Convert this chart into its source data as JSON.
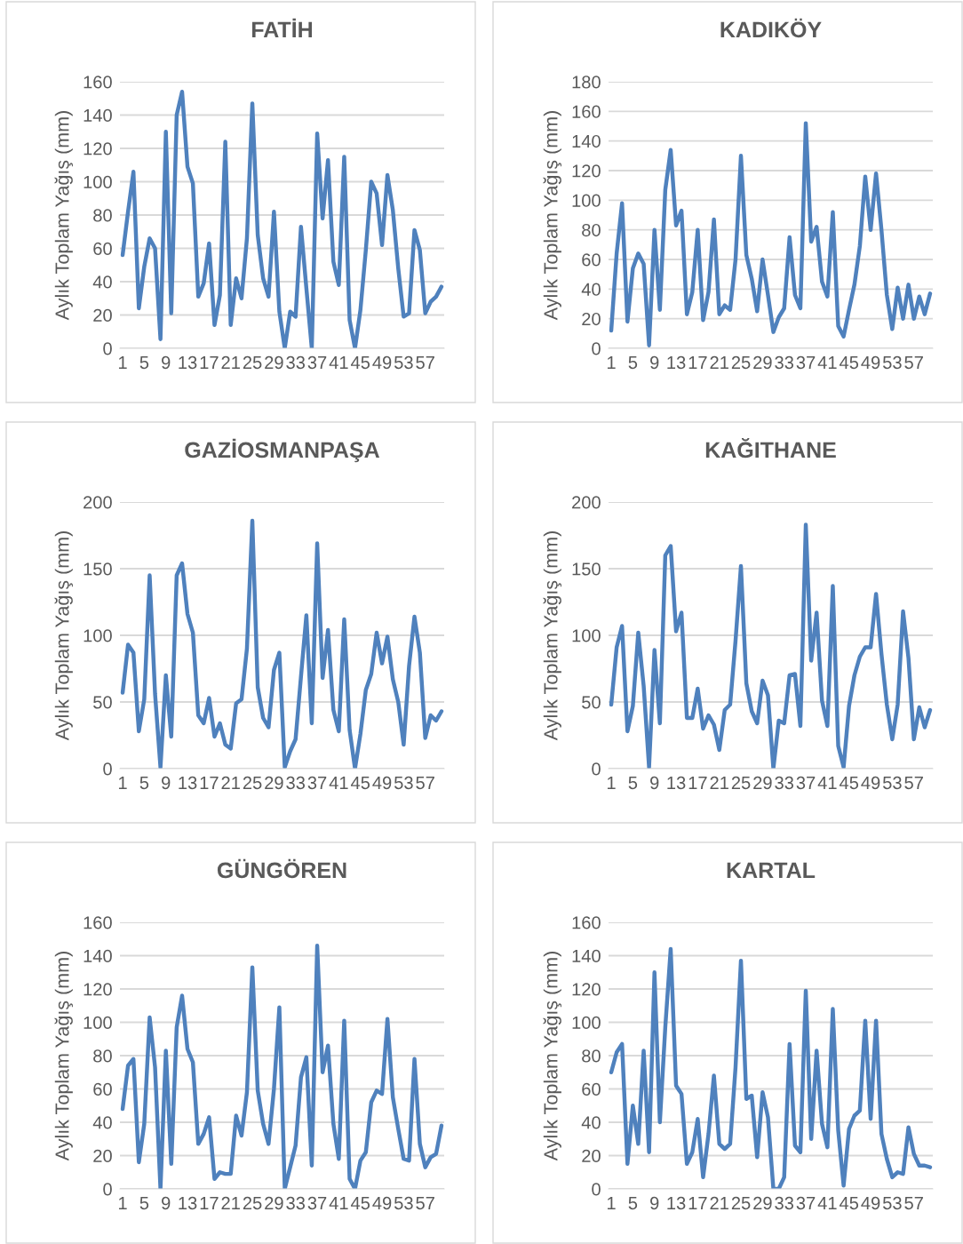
{
  "chart_data": [
    {
      "type": "line",
      "title": "FATİH",
      "ylabel": "Aylık Toplam Yağış (mm)",
      "ylim": [
        0,
        160
      ],
      "yticks": [
        0,
        20,
        40,
        60,
        80,
        100,
        120,
        140,
        160
      ],
      "grid": "y",
      "legend": false,
      "categories": [
        "1",
        null,
        null,
        null,
        "5",
        null,
        null,
        null,
        "9",
        null,
        null,
        null,
        "13",
        null,
        null,
        null,
        "17",
        null,
        null,
        null,
        "21",
        null,
        null,
        null,
        "25",
        null,
        null,
        null,
        "29",
        null,
        null,
        null,
        "33",
        null,
        null,
        null,
        "37",
        null,
        null,
        null,
        "41",
        null,
        null,
        null,
        "45",
        null,
        null,
        null,
        "49",
        null,
        null,
        null,
        "53",
        null,
        null,
        null,
        "57",
        null,
        null,
        null
      ],
      "series": [
        {
          "color": "#4f81bd",
          "values": [
            56,
            82,
            106,
            24,
            49,
            66,
            60,
            5.5,
            130,
            21,
            140,
            154,
            109,
            99,
            31,
            39,
            63,
            14,
            32,
            124,
            14,
            42,
            30,
            66,
            147,
            68,
            42,
            31,
            82,
            22,
            0,
            22,
            19,
            73,
            36,
            0,
            129,
            78,
            113,
            52,
            38,
            115,
            17,
            0,
            23,
            59,
            100,
            93,
            62,
            104,
            83,
            48,
            19,
            21,
            71,
            59,
            21,
            28,
            31,
            37
          ]
        }
      ]
    },
    {
      "type": "line",
      "title": "KADIKÖY",
      "ylabel": "Aylık Toplam Yağış (mm)",
      "ylim": [
        0,
        180
      ],
      "yticks": [
        0,
        20,
        40,
        60,
        80,
        100,
        120,
        140,
        160,
        180
      ],
      "grid": "y",
      "legend": false,
      "categories": [
        "1",
        null,
        null,
        null,
        "5",
        null,
        null,
        null,
        "9",
        null,
        null,
        null,
        "13",
        null,
        null,
        null,
        "17",
        null,
        null,
        null,
        "21",
        null,
        null,
        null,
        "25",
        null,
        null,
        null,
        "29",
        null,
        null,
        null,
        "33",
        null,
        null,
        null,
        "37",
        null,
        null,
        null,
        "41",
        null,
        null,
        null,
        "45",
        null,
        null,
        null,
        "49",
        null,
        null,
        null,
        "53",
        null,
        null,
        null,
        "57",
        null,
        null,
        null
      ],
      "series": [
        {
          "color": "#4f81bd",
          "values": [
            12,
            64,
            98,
            18,
            54,
            64,
            57,
            2,
            80,
            26,
            107,
            134,
            83,
            93,
            23,
            38,
            80,
            19,
            38,
            87,
            23,
            29,
            26,
            60,
            130,
            63,
            47,
            25,
            60,
            36,
            11,
            21,
            27,
            75,
            36,
            27,
            152,
            72,
            82,
            45,
            35,
            92,
            15,
            8,
            26,
            43,
            69,
            116,
            80,
            118,
            80,
            36,
            13,
            41,
            20,
            43,
            20,
            35,
            23,
            37
          ]
        }
      ]
    },
    {
      "type": "line",
      "title": "GAZİOSMANPAŞA",
      "ylabel": "Aylık Toplam Yağış (mm)",
      "ylim": [
        0,
        200
      ],
      "yticks": [
        0,
        50,
        100,
        150,
        200
      ],
      "grid": "y",
      "legend": false,
      "categories": [
        "1",
        null,
        null,
        null,
        "5",
        null,
        null,
        null,
        "9",
        null,
        null,
        null,
        "13",
        null,
        null,
        null,
        "17",
        null,
        null,
        null,
        "21",
        null,
        null,
        null,
        "25",
        null,
        null,
        null,
        "29",
        null,
        null,
        null,
        "33",
        null,
        null,
        null,
        "37",
        null,
        null,
        null,
        "41",
        null,
        null,
        null,
        "45",
        null,
        null,
        null,
        "49",
        null,
        null,
        null,
        "53",
        null,
        null,
        null,
        "57",
        null,
        null,
        null
      ],
      "series": [
        {
          "color": "#4f81bd",
          "values": [
            57,
            93,
            87,
            28,
            52,
            145,
            56,
            1,
            70,
            24,
            145,
            154,
            116,
            102,
            40,
            34,
            53,
            24,
            34,
            18,
            15,
            49,
            52,
            90,
            186,
            61,
            38,
            31,
            74,
            87,
            1,
            13,
            22,
            69,
            115,
            34,
            169,
            68,
            104,
            44,
            28,
            112,
            29,
            0,
            26,
            59,
            71,
            102,
            79,
            99,
            67,
            50,
            18,
            77,
            114,
            87,
            23,
            40,
            36,
            43
          ]
        }
      ]
    },
    {
      "type": "line",
      "title": "KAĞITHANE",
      "ylabel": "Aylık Toplam Yağış (mm)",
      "ylim": [
        0,
        200
      ],
      "yticks": [
        0,
        50,
        100,
        150,
        200
      ],
      "grid": "y",
      "legend": false,
      "categories": [
        "1",
        null,
        null,
        null,
        "5",
        null,
        null,
        null,
        "9",
        null,
        null,
        null,
        "13",
        null,
        null,
        null,
        "17",
        null,
        null,
        null,
        "21",
        null,
        null,
        null,
        "25",
        null,
        null,
        null,
        "29",
        null,
        null,
        null,
        "33",
        null,
        null,
        null,
        "37",
        null,
        null,
        null,
        "41",
        null,
        null,
        null,
        "45",
        null,
        null,
        null,
        "49",
        null,
        null,
        null,
        "53",
        null,
        null,
        null,
        "57",
        null,
        null,
        null
      ],
      "series": [
        {
          "color": "#4f81bd",
          "values": [
            48,
            91,
            107,
            28,
            47,
            102,
            62,
            1,
            89,
            34,
            160,
            167,
            103,
            117,
            38,
            38,
            60,
            30,
            40,
            33,
            14,
            44,
            48,
            96,
            152,
            64,
            43,
            34,
            66,
            55,
            0,
            36,
            34,
            70,
            71,
            32,
            183,
            81,
            117,
            51,
            32,
            137,
            17,
            1,
            47,
            70,
            84,
            91,
            91,
            131,
            86,
            48,
            22,
            48,
            118,
            83,
            22,
            46,
            31,
            44
          ]
        }
      ]
    },
    {
      "type": "line",
      "title": "GÜNGÖREN",
      "ylabel": "Aylık Toplam Yağış (mm)",
      "ylim": [
        0,
        160
      ],
      "yticks": [
        0,
        20,
        40,
        60,
        80,
        100,
        120,
        140,
        160
      ],
      "grid": "y",
      "legend": false,
      "categories": [
        "1",
        null,
        null,
        null,
        "5",
        null,
        null,
        null,
        "9",
        null,
        null,
        null,
        "13",
        null,
        null,
        null,
        "17",
        null,
        null,
        null,
        "21",
        null,
        null,
        null,
        "25",
        null,
        null,
        null,
        "29",
        null,
        null,
        null,
        "33",
        null,
        null,
        null,
        "37",
        null,
        null,
        null,
        "41",
        null,
        null,
        null,
        "45",
        null,
        null,
        null,
        "49",
        null,
        null,
        null,
        "53",
        null,
        null,
        null,
        "57",
        null,
        null,
        null
      ],
      "series": [
        {
          "color": "#4f81bd",
          "values": [
            48,
            74,
            78,
            16,
            39,
            103,
            73,
            0,
            83,
            15,
            97,
            116,
            84,
            76,
            27,
            33,
            43,
            6,
            10,
            9,
            9,
            44,
            32,
            58,
            133,
            59,
            39,
            27,
            60,
            109,
            0,
            13,
            26,
            67,
            79,
            14,
            146,
            70,
            86,
            39,
            18,
            101,
            6,
            0,
            17,
            22,
            52,
            59,
            57,
            102,
            55,
            36,
            18,
            17,
            78,
            27,
            13,
            19,
            21,
            38
          ]
        }
      ]
    },
    {
      "type": "line",
      "title": "KARTAL",
      "ylabel": "Aylık Toplam Yağış (mm)",
      "ylim": [
        0,
        160
      ],
      "yticks": [
        0,
        20,
        40,
        60,
        80,
        100,
        120,
        140,
        160
      ],
      "grid": "y",
      "legend": false,
      "categories": [
        "1",
        null,
        null,
        null,
        "5",
        null,
        null,
        null,
        "9",
        null,
        null,
        null,
        "13",
        null,
        null,
        null,
        "17",
        null,
        null,
        null,
        "21",
        null,
        null,
        null,
        "25",
        null,
        null,
        null,
        "29",
        null,
        null,
        null,
        "33",
        null,
        null,
        null,
        "37",
        null,
        null,
        null,
        "41",
        null,
        null,
        null,
        "45",
        null,
        null,
        null,
        "49",
        null,
        null,
        null,
        "53",
        null,
        null,
        null,
        "57",
        null,
        null,
        null
      ],
      "series": [
        {
          "color": "#4f81bd",
          "values": [
            70,
            82,
            87,
            15,
            50,
            27,
            83,
            22,
            130,
            40,
            97,
            144,
            62,
            57,
            15,
            22,
            42,
            7,
            33,
            68,
            27,
            24,
            27,
            73,
            137,
            54,
            56,
            19,
            58,
            43,
            0,
            0,
            7,
            87,
            26,
            22,
            119,
            30,
            83,
            39,
            25,
            108,
            35,
            2,
            36,
            44,
            47,
            101,
            42,
            101,
            33,
            18,
            7,
            10,
            9,
            37,
            21,
            14,
            14,
            13
          ]
        }
      ]
    }
  ]
}
